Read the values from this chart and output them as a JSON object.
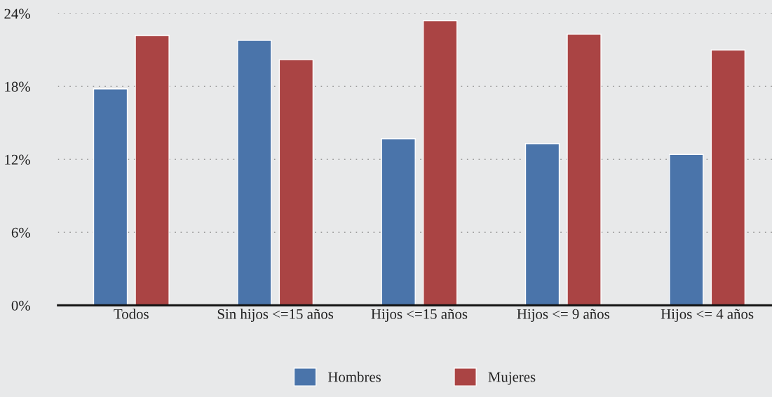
{
  "chart_data": {
    "type": "bar",
    "categories": [
      "Todos",
      "Sin hijos <=15 años",
      "Hijos <=15 años",
      "Hijos <= 9 años",
      "Hijos <= 4 años"
    ],
    "series": [
      {
        "name": "Hombres",
        "color": "#4a74aa",
        "values": [
          17.8,
          21.8,
          13.7,
          13.3,
          12.4
        ]
      },
      {
        "name": "Mujeres",
        "color": "#aa4444",
        "values": [
          22.2,
          20.2,
          23.4,
          22.3,
          21.0
        ]
      }
    ],
    "ylim": [
      0,
      24
    ],
    "yticks": [
      {
        "value": 0,
        "label": "0%"
      },
      {
        "value": 6,
        "label": "6%"
      },
      {
        "value": 12,
        "label": "12%"
      },
      {
        "value": 18,
        "label": "18%"
      },
      {
        "value": 24,
        "label": "24%"
      }
    ],
    "grid": "y",
    "legend": "bottom"
  }
}
